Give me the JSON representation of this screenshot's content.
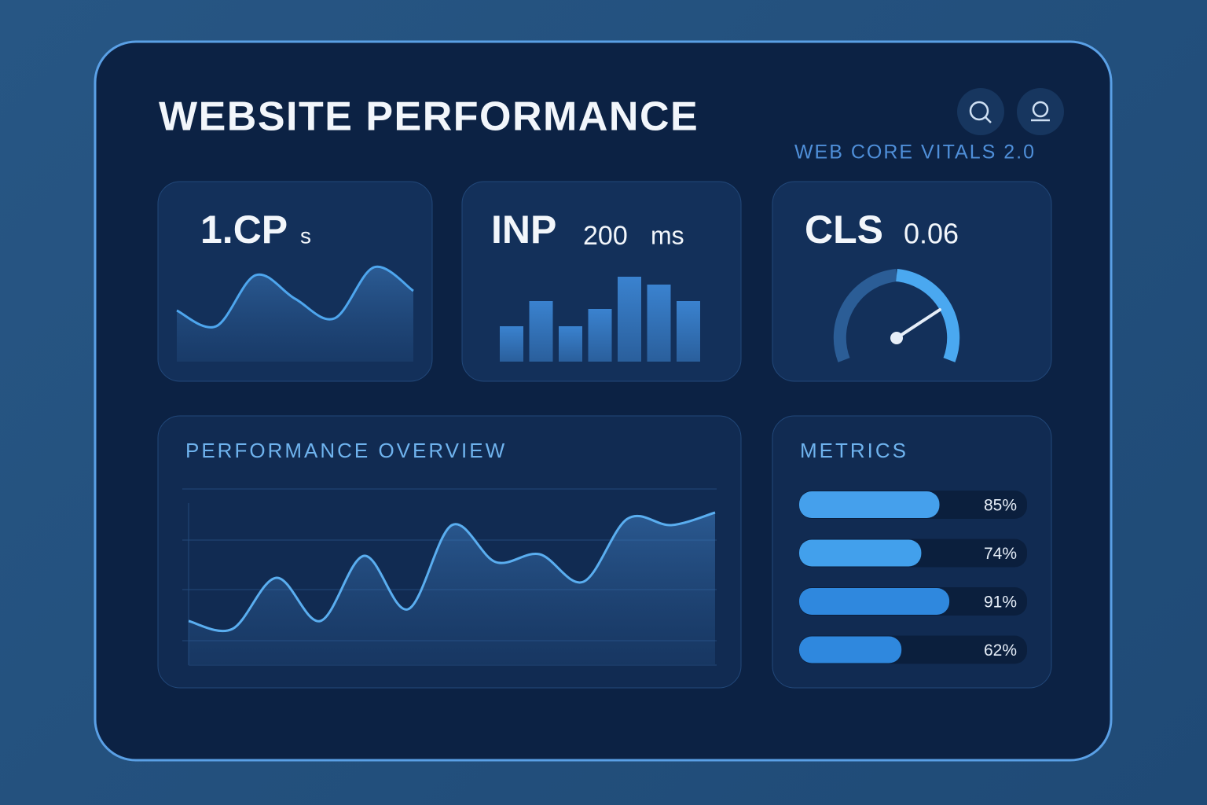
{
  "header": {
    "title": "WEBSITE PERFORMANCE",
    "subtitle": "WEB CORE VITALS 2.0"
  },
  "cards": [
    {
      "name": "1.CP",
      "unit": "s",
      "sparkline": [
        65,
        45,
        110,
        80,
        55,
        120,
        90
      ]
    },
    {
      "name": "INP",
      "value": "200",
      "unit": "ms",
      "bars": [
        45,
        77,
        45,
        67,
        108,
        98,
        77
      ]
    },
    {
      "name": "CLS",
      "value": "0.06"
    }
  ],
  "overview": {
    "title": "PERFORMANCE OVERVIEW",
    "values": [
      55,
      45,
      110,
      55,
      138,
      70,
      177,
      130,
      140,
      105,
      185,
      177,
      193
    ]
  },
  "metrics": {
    "title": "METRICS",
    "items": [
      {
        "value": 85,
        "label": "85%"
      },
      {
        "value": 74,
        "label": "74%"
      },
      {
        "value": 91,
        "label": "91%"
      },
      {
        "value": 62,
        "label": "62%"
      }
    ]
  }
}
